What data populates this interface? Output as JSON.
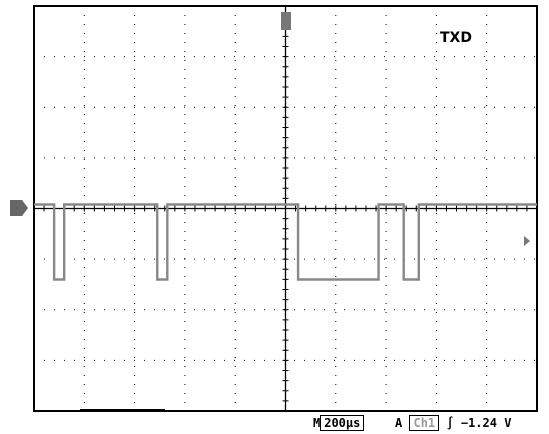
{
  "channel_label": "TXD",
  "status": {
    "m_label": "M",
    "timebase": "200µs",
    "a_label": "A",
    "trigger_channel": "Ch1",
    "trigger_slope": "∫",
    "trigger_level": "−1.24 V"
  },
  "trace": {
    "high_level": 0.6,
    "low_level": -1.43,
    "segments_div": [
      [
        0.0,
        0.4
      ],
      [
        0.6,
        2.45
      ],
      [
        2.65,
        5.25
      ],
      [
        6.85,
        7.35
      ],
      [
        7.65,
        10.0
      ]
    ]
  },
  "colors": {
    "trace": "#888888",
    "grid": "#000000"
  }
}
